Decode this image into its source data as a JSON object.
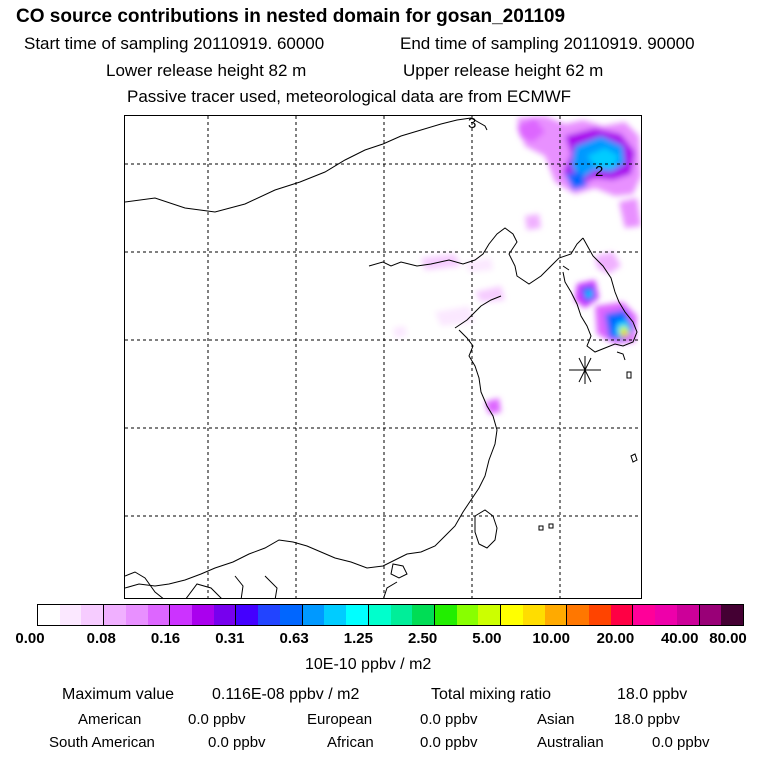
{
  "header": {
    "title": "CO  source contributions in nested domain for gosan_201109",
    "start_time": "Start time of sampling 20110919. 60000",
    "end_time": "End time of sampling 20110919. 90000",
    "lower_height": "Lower release height   82 m",
    "upper_height": "Upper release height   62 m",
    "tracer_note": "Passive tracer used, meteorological data are from ECMWF"
  },
  "map": {
    "contour_labels": [
      "3",
      "2"
    ],
    "receptor_marker": "gosan-receptor"
  },
  "colorbar": {
    "ticks": [
      "0.00",
      "0.08",
      "0.16",
      "0.31",
      "0.63",
      "1.25",
      "2.50",
      "5.00",
      "10.00",
      "20.00",
      "40.00",
      "80.00"
    ],
    "units": "10E-10 ppbv / m2",
    "colors": [
      "#ffffff",
      "#fbe8ff",
      "#f6ccff",
      "#f0b0ff",
      "#e890ff",
      "#dd66ff",
      "#cc33ff",
      "#aa00ee",
      "#7700ee",
      "#4400ff",
      "#2244ff",
      "#0066ff",
      "#0099ff",
      "#00ccff",
      "#00ffff",
      "#00ffcc",
      "#00ee99",
      "#00dd55",
      "#22ee00",
      "#88ff00",
      "#ccff00",
      "#ffff00",
      "#ffdd00",
      "#ffaa00",
      "#ff7700",
      "#ff4400",
      "#ff0044",
      "#ff0099",
      "#ee00aa",
      "#cc0099",
      "#990077",
      "#440033"
    ]
  },
  "stats": {
    "max_label": "Maximum value",
    "max_value": "0.116E-08 ppbv / m2",
    "total_label": "Total mixing ratio",
    "total_value": "18.0 ppbv",
    "regions": [
      {
        "name": "American",
        "value": "0.0 ppbv"
      },
      {
        "name": "European",
        "value": "0.0 ppbv"
      },
      {
        "name": "Asian",
        "value": "18.0 ppbv"
      },
      {
        "name": "South American",
        "value": "0.0 ppbv"
      },
      {
        "name": "African",
        "value": "0.0 ppbv"
      },
      {
        "name": "Australian",
        "value": "0.0 ppbv"
      }
    ]
  }
}
